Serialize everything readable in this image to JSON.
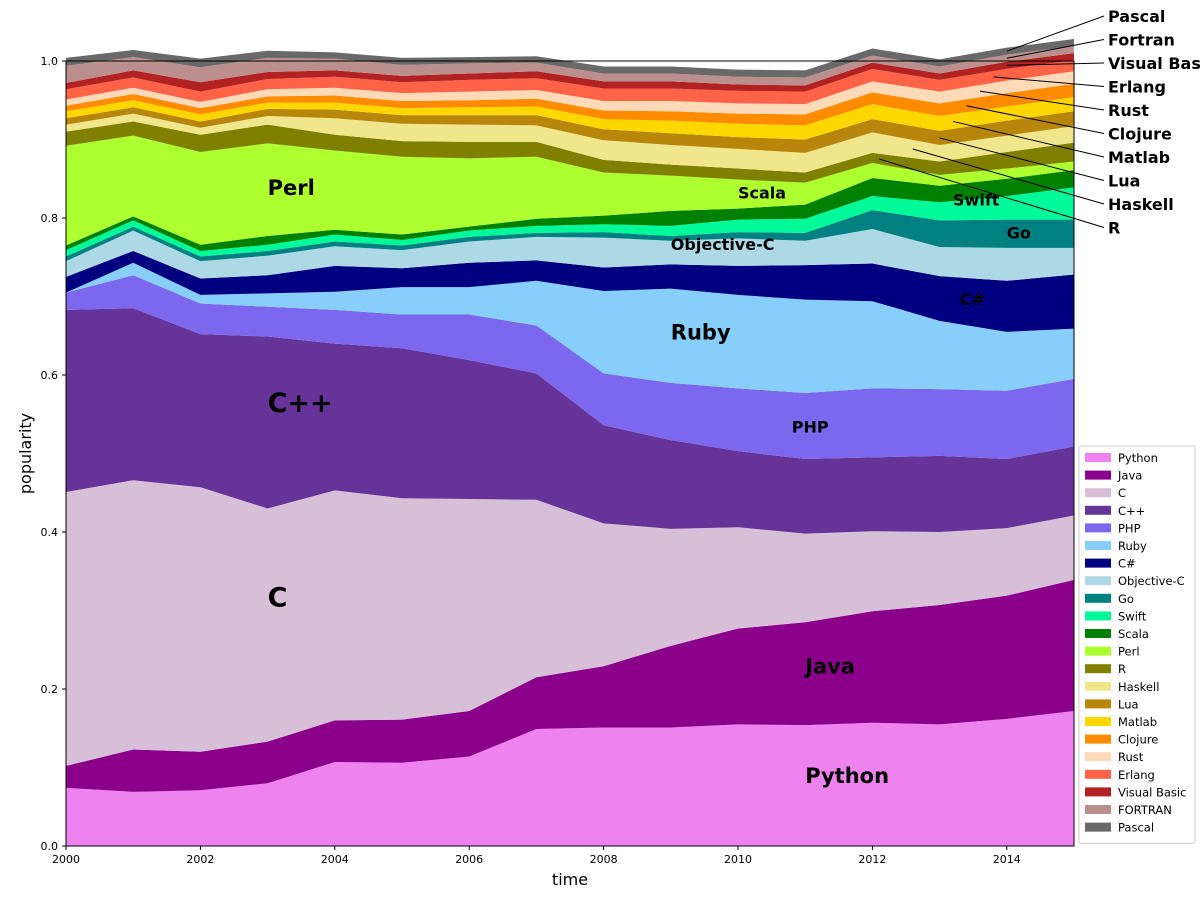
{
  "chart_data": {
    "type": "area",
    "stacked": true,
    "xlabel": "time",
    "ylabel": "popularity",
    "xlim": [
      2000,
      2015
    ],
    "ylim": [
      0,
      1.0
    ],
    "x": [
      2000,
      2001,
      2002,
      2003,
      2004,
      2005,
      2006,
      2007,
      2008,
      2009,
      2010,
      2011,
      2012,
      2013,
      2014,
      2015
    ],
    "xticks": [
      "2000",
      "2002",
      "2004",
      "2006",
      "2008",
      "2010",
      "2012",
      "2014"
    ],
    "yticks": [
      "0.0",
      "0.2",
      "0.4",
      "0.6",
      "0.8",
      "1.0"
    ],
    "legend_position": "lower-right",
    "series": [
      {
        "name": "Python",
        "color": "#ee82ee",
        "values": [
          0.074,
          0.069,
          0.071,
          0.08,
          0.107,
          0.106,
          0.114,
          0.149,
          0.151,
          0.151,
          0.155,
          0.154,
          0.157,
          0.155,
          0.162,
          0.172
        ]
      },
      {
        "name": "Java",
        "color": "#8b008b",
        "values": [
          0.028,
          0.054,
          0.049,
          0.053,
          0.053,
          0.055,
          0.058,
          0.066,
          0.078,
          0.104,
          0.122,
          0.131,
          0.142,
          0.152,
          0.157,
          0.167
        ]
      },
      {
        "name": "C",
        "color": "#d8bfd8",
        "values": [
          0.349,
          0.343,
          0.337,
          0.297,
          0.293,
          0.282,
          0.27,
          0.226,
          0.182,
          0.149,
          0.129,
          0.113,
          0.102,
          0.093,
          0.086,
          0.082
        ]
      },
      {
        "name": "C++",
        "color": "#663399",
        "values": [
          0.232,
          0.219,
          0.195,
          0.219,
          0.187,
          0.191,
          0.177,
          0.161,
          0.125,
          0.113,
          0.097,
          0.095,
          0.094,
          0.097,
          0.088,
          0.088
        ]
      },
      {
        "name": "PHP",
        "color": "#7b68ee",
        "values": [
          0.022,
          0.042,
          0.039,
          0.038,
          0.043,
          0.043,
          0.058,
          0.061,
          0.066,
          0.073,
          0.08,
          0.084,
          0.088,
          0.085,
          0.087,
          0.086
        ]
      },
      {
        "name": "Ruby",
        "color": "#87cefa",
        "values": [
          0.0,
          0.016,
          0.011,
          0.017,
          0.023,
          0.035,
          0.035,
          0.057,
          0.105,
          0.12,
          0.119,
          0.119,
          0.111,
          0.087,
          0.075,
          0.064
        ]
      },
      {
        "name": "C#",
        "color": "#000080",
        "values": [
          0.02,
          0.015,
          0.021,
          0.023,
          0.033,
          0.024,
          0.031,
          0.026,
          0.03,
          0.031,
          0.037,
          0.044,
          0.048,
          0.057,
          0.065,
          0.069
        ]
      },
      {
        "name": "Objective-C",
        "color": "#add8e6",
        "values": [
          0.02,
          0.026,
          0.022,
          0.025,
          0.025,
          0.023,
          0.027,
          0.03,
          0.038,
          0.03,
          0.035,
          0.031,
          0.044,
          0.037,
          0.042,
          0.034
        ]
      },
      {
        "name": "Go",
        "color": "#008080",
        "values": [
          0.006,
          0.005,
          0.006,
          0.006,
          0.006,
          0.006,
          0.006,
          0.005,
          0.007,
          0.006,
          0.008,
          0.01,
          0.024,
          0.034,
          0.036,
          0.036
        ]
      },
      {
        "name": "Swift",
        "color": "#00fa9a",
        "values": [
          0.008,
          0.008,
          0.007,
          0.008,
          0.009,
          0.007,
          0.008,
          0.009,
          0.01,
          0.013,
          0.016,
          0.018,
          0.018,
          0.023,
          0.03,
          0.041
        ]
      },
      {
        "name": "Scala",
        "color": "#008000",
        "values": [
          0.006,
          0.005,
          0.008,
          0.011,
          0.006,
          0.007,
          0.005,
          0.009,
          0.011,
          0.019,
          0.014,
          0.018,
          0.023,
          0.021,
          0.022,
          0.022
        ]
      },
      {
        "name": "Perl",
        "color": "#adff2f",
        "values": [
          0.127,
          0.103,
          0.118,
          0.118,
          0.101,
          0.099,
          0.087,
          0.079,
          0.055,
          0.045,
          0.037,
          0.028,
          0.019,
          0.014,
          0.013,
          0.011
        ]
      },
      {
        "name": "R",
        "color": "#808000",
        "values": [
          0.018,
          0.018,
          0.022,
          0.024,
          0.02,
          0.02,
          0.021,
          0.019,
          0.016,
          0.014,
          0.014,
          0.013,
          0.013,
          0.017,
          0.021,
          0.024
        ]
      },
      {
        "name": "Haskell",
        "color": "#f0e68c",
        "values": [
          0.009,
          0.01,
          0.009,
          0.011,
          0.021,
          0.022,
          0.022,
          0.021,
          0.025,
          0.025,
          0.025,
          0.025,
          0.026,
          0.021,
          0.021,
          0.021
        ]
      },
      {
        "name": "Lua",
        "color": "#b8860b",
        "values": [
          0.008,
          0.008,
          0.008,
          0.009,
          0.011,
          0.011,
          0.012,
          0.013,
          0.014,
          0.015,
          0.015,
          0.017,
          0.017,
          0.018,
          0.019,
          0.019
        ]
      },
      {
        "name": "Matlab",
        "color": "#ffd700",
        "values": [
          0.009,
          0.009,
          0.009,
          0.008,
          0.009,
          0.009,
          0.01,
          0.011,
          0.013,
          0.016,
          0.017,
          0.018,
          0.019,
          0.019,
          0.018,
          0.018
        ]
      },
      {
        "name": "Clojure",
        "color": "#ff8c00",
        "values": [
          0.007,
          0.008,
          0.008,
          0.008,
          0.009,
          0.009,
          0.009,
          0.01,
          0.011,
          0.012,
          0.013,
          0.014,
          0.015,
          0.016,
          0.017,
          0.017
        ]
      },
      {
        "name": "Rust",
        "color": "#ffdab9",
        "values": [
          0.008,
          0.008,
          0.008,
          0.009,
          0.01,
          0.01,
          0.011,
          0.011,
          0.012,
          0.013,
          0.013,
          0.013,
          0.014,
          0.015,
          0.016,
          0.016
        ]
      },
      {
        "name": "Erlang",
        "color": "#ff6347",
        "values": [
          0.013,
          0.013,
          0.013,
          0.013,
          0.014,
          0.014,
          0.015,
          0.015,
          0.016,
          0.016,
          0.016,
          0.016,
          0.016,
          0.015,
          0.015,
          0.014
        ]
      },
      {
        "name": "Visual Basic",
        "color": "#b22222",
        "values": [
          0.008,
          0.009,
          0.012,
          0.009,
          0.008,
          0.008,
          0.008,
          0.009,
          0.009,
          0.009,
          0.008,
          0.008,
          0.008,
          0.008,
          0.009,
          0.009
        ]
      },
      {
        "name": "FORTRAN",
        "color": "#bc8f8f",
        "values": [
          0.022,
          0.017,
          0.019,
          0.018,
          0.015,
          0.014,
          0.013,
          0.011,
          0.01,
          0.01,
          0.01,
          0.01,
          0.009,
          0.009,
          0.009,
          0.009
        ]
      },
      {
        "name": "Pascal",
        "color": "#696969",
        "values": [
          0.01,
          0.009,
          0.011,
          0.009,
          0.008,
          0.009,
          0.008,
          0.008,
          0.009,
          0.009,
          0.009,
          0.009,
          0.009,
          0.009,
          0.009,
          0.009
        ]
      }
    ],
    "in_plot_labels": [
      {
        "text": "Python",
        "x": 2011.0,
        "y": 0.08,
        "size": "large"
      },
      {
        "text": "Java",
        "x": 2011.0,
        "y": 0.22,
        "size": "large"
      },
      {
        "text": "C",
        "x": 2003.0,
        "y": 0.305,
        "size": "xlarge"
      },
      {
        "text": "C++",
        "x": 2003.0,
        "y": 0.553,
        "size": "xlarge"
      },
      {
        "text": "PHP",
        "x": 2010.8,
        "y": 0.527,
        "size": "medium"
      },
      {
        "text": "Ruby",
        "x": 2009.0,
        "y": 0.645,
        "size": "large"
      },
      {
        "text": "C#",
        "x": 2013.3,
        "y": 0.689,
        "size": "medium"
      },
      {
        "text": "Objective-C",
        "x": 2009.0,
        "y": 0.759,
        "size": "medium"
      },
      {
        "text": "Go",
        "x": 2014.0,
        "y": 0.774,
        "size": "medium"
      },
      {
        "text": "Swift",
        "x": 2013.2,
        "y": 0.816,
        "size": "medium"
      },
      {
        "text": "Scala",
        "x": 2010.0,
        "y": 0.825,
        "size": "medium"
      },
      {
        "text": "Perl",
        "x": 2003.0,
        "y": 0.829,
        "size": "large"
      }
    ],
    "callouts": [
      {
        "text": "Pascal",
        "series": "Pascal",
        "x": 2014.0
      },
      {
        "text": "Fortran",
        "series": "FORTRAN",
        "x": 2014.0
      },
      {
        "text": "Visual Basic",
        "series": "Visual Basic",
        "x": 2014.0
      },
      {
        "text": "Erlang",
        "series": "Erlang",
        "x": 2013.8
      },
      {
        "text": "Rust",
        "series": "Rust",
        "x": 2013.6
      },
      {
        "text": "Clojure",
        "series": "Clojure",
        "x": 2013.4
      },
      {
        "text": "Matlab",
        "series": "Matlab",
        "x": 2013.2
      },
      {
        "text": "Lua",
        "series": "Lua",
        "x": 2013.0
      },
      {
        "text": "Haskell",
        "series": "Haskell",
        "x": 2012.6
      },
      {
        "text": "R",
        "series": "R",
        "x": 2012.1
      }
    ]
  }
}
